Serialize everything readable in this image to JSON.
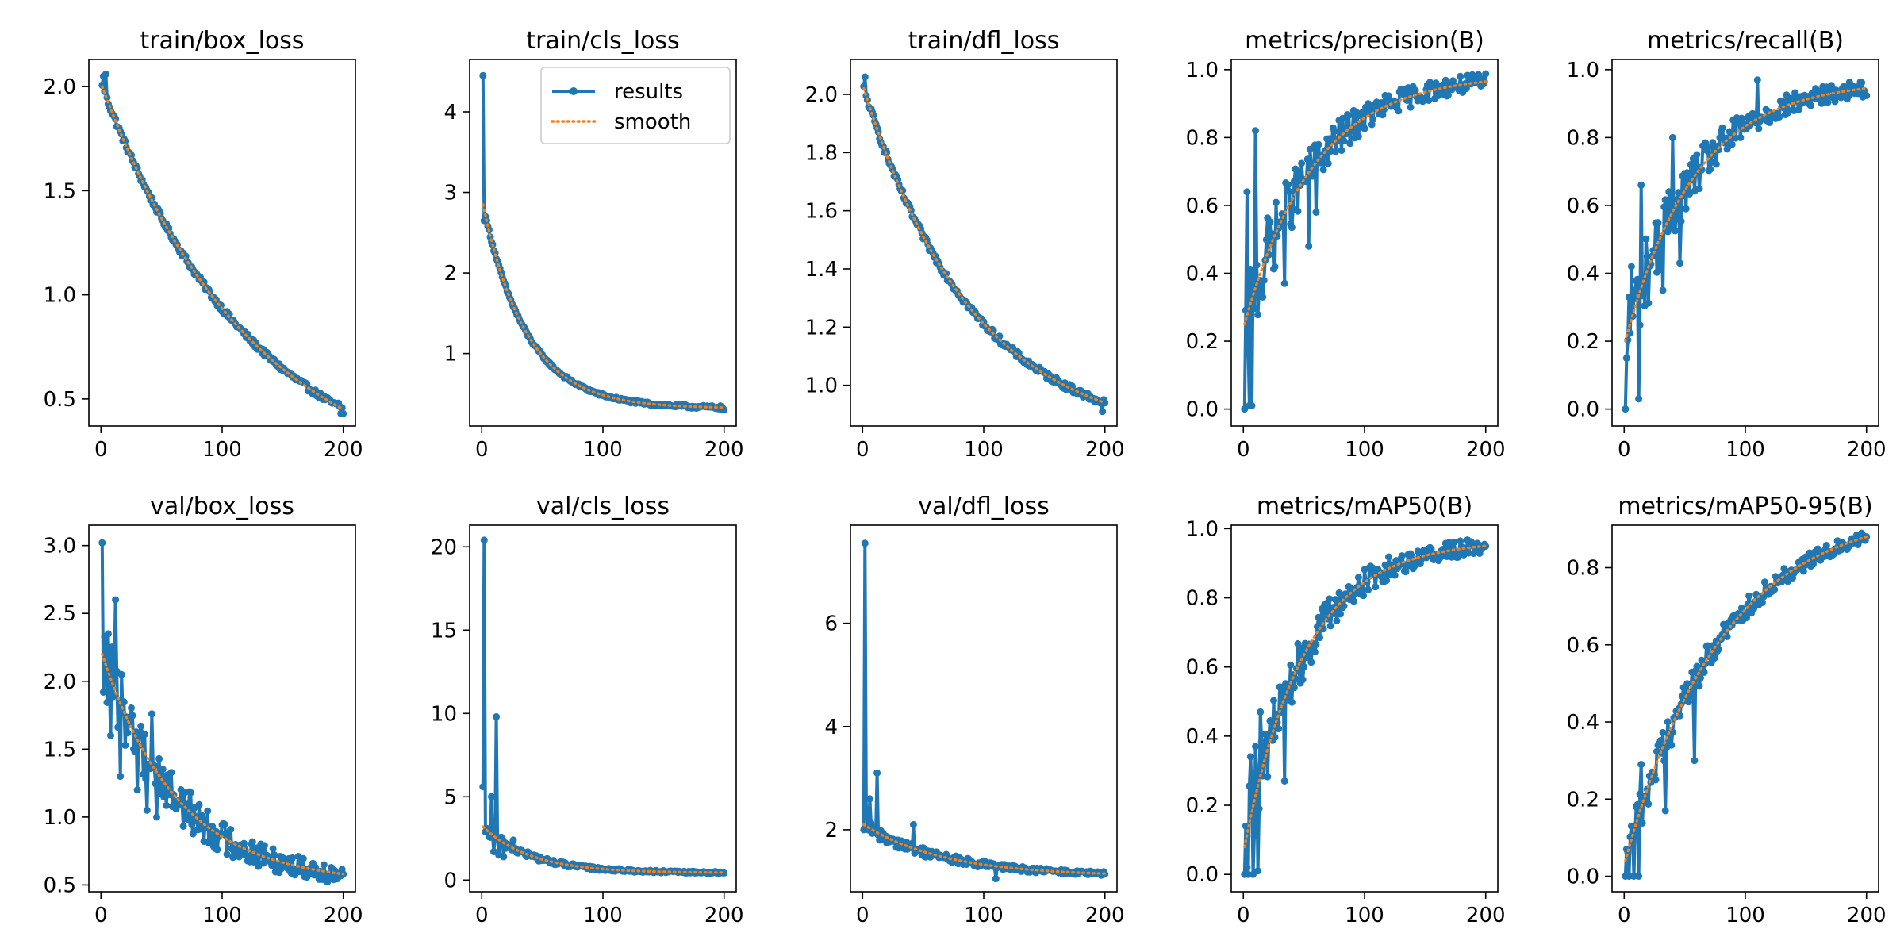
{
  "figure": {
    "legend": {
      "results_label": "results",
      "smooth_label": "smooth",
      "placement": "upper-right of train/cls_loss"
    },
    "colors": {
      "results": "#1f77b4",
      "smooth": "#ff7f0e"
    }
  },
  "chart_data": [
    {
      "type": "line",
      "title": "train/box_loss",
      "x_ticks": [
        0,
        100,
        200
      ],
      "y_ticks": [
        0.5,
        1.0,
        1.5,
        2.0
      ],
      "y_tick_labels": [
        "0.5",
        "1.0",
        "1.5",
        "2.0"
      ],
      "xlim": [
        -10,
        210
      ],
      "ylim": [
        0.37,
        2.13
      ],
      "shape": "decay",
      "y_start": 2.0,
      "y_end": 0.45,
      "k": 1.6,
      "noise": 0.015,
      "spikes": [
        [
          2,
          2.05
        ],
        [
          4,
          2.06
        ],
        [
          196,
          0.48
        ],
        [
          198,
          0.43
        ],
        [
          200,
          0.43
        ]
      ]
    },
    {
      "type": "line",
      "title": "train/cls_loss",
      "x_ticks": [
        0,
        100,
        200
      ],
      "y_ticks": [
        1,
        2,
        3,
        4
      ],
      "y_tick_labels": [
        "1",
        "2",
        "3",
        "4"
      ],
      "xlim": [
        -10,
        210
      ],
      "ylim": [
        0.1,
        4.65
      ],
      "shape": "decay",
      "y_start": 2.85,
      "y_end": 0.33,
      "k": 5.5,
      "noise": 0.02,
      "spikes": [
        [
          1,
          4.45
        ],
        [
          2,
          2.65
        ],
        [
          4,
          2.65
        ],
        [
          198,
          0.3
        ],
        [
          200,
          0.3
        ]
      ],
      "legend": true
    },
    {
      "type": "line",
      "title": "train/dfl_loss",
      "x_ticks": [
        0,
        100,
        200
      ],
      "y_ticks": [
        1.0,
        1.2,
        1.4,
        1.6,
        1.8,
        2.0
      ],
      "y_tick_labels": [
        "1.0",
        "1.2",
        "1.4",
        "1.6",
        "1.8",
        "2.0"
      ],
      "xlim": [
        -10,
        210
      ],
      "ylim": [
        0.86,
        2.12
      ],
      "shape": "decay",
      "y_start": 2.02,
      "y_end": 0.94,
      "k": 2.2,
      "noise": 0.012,
      "spikes": [
        [
          2,
          2.06
        ],
        [
          196,
          0.94
        ],
        [
          198,
          0.91
        ],
        [
          200,
          0.94
        ]
      ]
    },
    {
      "type": "line",
      "title": "metrics/precision(B)",
      "x_ticks": [
        0,
        100,
        200
      ],
      "y_ticks": [
        0.0,
        0.2,
        0.4,
        0.6,
        0.8,
        1.0
      ],
      "y_tick_labels": [
        "0.0",
        "0.2",
        "0.4",
        "0.6",
        "0.8",
        "1.0"
      ],
      "xlim": [
        -10,
        210
      ],
      "ylim": [
        -0.05,
        1.03
      ],
      "shape": "rise",
      "y_start": 0.25,
      "y_end": 0.965,
      "k": 3.5,
      "noise": 0.06,
      "noise_decay": 3.5,
      "spikes": [
        [
          1,
          0.0
        ],
        [
          3,
          0.64
        ],
        [
          5,
          0.01
        ],
        [
          7,
          0.01
        ],
        [
          10,
          0.82
        ],
        [
          16,
          0.33
        ],
        [
          34,
          0.37
        ],
        [
          54,
          0.48
        ],
        [
          60,
          0.58
        ]
      ]
    },
    {
      "type": "line",
      "title": "metrics/recall(B)",
      "x_ticks": [
        0,
        100,
        200
      ],
      "y_ticks": [
        0.0,
        0.2,
        0.4,
        0.6,
        0.8,
        1.0
      ],
      "y_tick_labels": [
        "0.0",
        "0.2",
        "0.4",
        "0.6",
        "0.8",
        "1.0"
      ],
      "xlim": [
        -10,
        210
      ],
      "ylim": [
        -0.05,
        1.03
      ],
      "shape": "rise",
      "y_start": 0.2,
      "y_end": 0.945,
      "k": 3.5,
      "noise": 0.06,
      "noise_decay": 3.5,
      "spikes": [
        [
          1,
          0.0
        ],
        [
          2,
          0.15
        ],
        [
          4,
          0.33
        ],
        [
          6,
          0.42
        ],
        [
          9,
          0.35
        ],
        [
          12,
          0.03
        ],
        [
          14,
          0.66
        ],
        [
          32,
          0.35
        ],
        [
          40,
          0.8
        ],
        [
          46,
          0.43
        ],
        [
          110,
          0.97
        ]
      ]
    },
    {
      "type": "line",
      "title": "val/box_loss",
      "x_ticks": [
        0,
        100,
        200
      ],
      "y_ticks": [
        0.5,
        1.0,
        1.5,
        2.0,
        2.5,
        3.0
      ],
      "y_tick_labels": [
        "0.5",
        "1.0",
        "1.5",
        "2.0",
        "2.5",
        "3.0"
      ],
      "xlim": [
        -10,
        210
      ],
      "ylim": [
        0.45,
        3.15
      ],
      "shape": "decay",
      "y_start": 2.2,
      "y_end": 0.58,
      "k": 3.2,
      "noise": 0.12,
      "noise_decay": 2.2,
      "spikes": [
        [
          1,
          3.02
        ],
        [
          2,
          1.92
        ],
        [
          4,
          2.3
        ],
        [
          6,
          2.35
        ],
        [
          8,
          1.6
        ],
        [
          12,
          2.6
        ],
        [
          16,
          1.3
        ],
        [
          22,
          1.62
        ],
        [
          30,
          1.2
        ],
        [
          33,
          1.67
        ],
        [
          38,
          1.05
        ],
        [
          42,
          1.76
        ],
        [
          46,
          1.0
        ],
        [
          200,
          0.58
        ]
      ]
    },
    {
      "type": "line",
      "title": "val/cls_loss",
      "x_ticks": [
        0,
        100,
        200
      ],
      "y_ticks": [
        0,
        5,
        10,
        15,
        20
      ],
      "y_tick_labels": [
        "0",
        "5",
        "10",
        "15",
        "20"
      ],
      "xlim": [
        -10,
        210
      ],
      "ylim": [
        -0.7,
        21.3
      ],
      "shape": "decay",
      "y_start": 3.2,
      "y_end": 0.45,
      "k": 5.0,
      "noise": 0.15,
      "noise_decay": 4,
      "spikes": [
        [
          1,
          5.6
        ],
        [
          2,
          20.4
        ],
        [
          4,
          3.1
        ],
        [
          6,
          2.6
        ],
        [
          8,
          5.0
        ],
        [
          10,
          1.7
        ],
        [
          12,
          9.8
        ],
        [
          14,
          1.5
        ],
        [
          18,
          1.4
        ],
        [
          26,
          2.4
        ]
      ]
    },
    {
      "type": "line",
      "title": "val/dfl_loss",
      "x_ticks": [
        0,
        100,
        200
      ],
      "y_ticks": [
        2,
        4,
        6
      ],
      "y_tick_labels": [
        "2",
        "4",
        "6"
      ],
      "xlim": [
        -10,
        210
      ],
      "ylim": [
        0.8,
        7.9
      ],
      "shape": "decay",
      "y_start": 2.1,
      "y_end": 1.15,
      "k": 3.0,
      "noise": 0.06,
      "noise_decay": 2,
      "spikes": [
        [
          1,
          2.0
        ],
        [
          2,
          7.55
        ],
        [
          3,
          2.4
        ],
        [
          6,
          2.6
        ],
        [
          10,
          1.95
        ],
        [
          12,
          3.1
        ],
        [
          14,
          1.8
        ],
        [
          42,
          2.1
        ],
        [
          110,
          1.05
        ]
      ]
    },
    {
      "type": "line",
      "title": "metrics/mAP50(B)",
      "x_ticks": [
        0,
        100,
        200
      ],
      "y_ticks": [
        0.0,
        0.2,
        0.4,
        0.6,
        0.8,
        1.0
      ],
      "y_tick_labels": [
        "0.0",
        "0.2",
        "0.4",
        "0.6",
        "0.8",
        "1.0"
      ],
      "xlim": [
        -10,
        210
      ],
      "ylim": [
        -0.05,
        1.01
      ],
      "shape": "rise",
      "y_start": 0.08,
      "y_end": 0.95,
      "k": 4.0,
      "noise": 0.05,
      "noise_decay": 3,
      "spikes": [
        [
          1,
          0.0
        ],
        [
          2,
          0.14
        ],
        [
          4,
          0.0
        ],
        [
          6,
          0.34
        ],
        [
          8,
          0.0
        ],
        [
          10,
          0.37
        ],
        [
          12,
          0.01
        ],
        [
          14,
          0.47
        ],
        [
          34,
          0.27
        ],
        [
          170,
          0.96
        ]
      ]
    },
    {
      "type": "line",
      "title": "metrics/mAP50-95(B)",
      "x_ticks": [
        0,
        100,
        200
      ],
      "y_ticks": [
        0.0,
        0.2,
        0.4,
        0.6,
        0.8
      ],
      "y_tick_labels": [
        "0.0",
        "0.2",
        "0.4",
        "0.6",
        "0.8"
      ],
      "xlim": [
        -10,
        210
      ],
      "ylim": [
        -0.04,
        0.91
      ],
      "shape": "rise",
      "y_start": 0.04,
      "y_end": 0.88,
      "k": 2.5,
      "noise": 0.03,
      "noise_decay": 2.5,
      "spikes": [
        [
          1,
          0.0
        ],
        [
          2,
          0.07
        ],
        [
          4,
          0.0
        ],
        [
          6,
          0.13
        ],
        [
          8,
          0.0
        ],
        [
          10,
          0.18
        ],
        [
          12,
          0.0
        ],
        [
          14,
          0.29
        ],
        [
          34,
          0.17
        ],
        [
          58,
          0.3
        ],
        [
          200,
          0.88
        ]
      ]
    }
  ]
}
